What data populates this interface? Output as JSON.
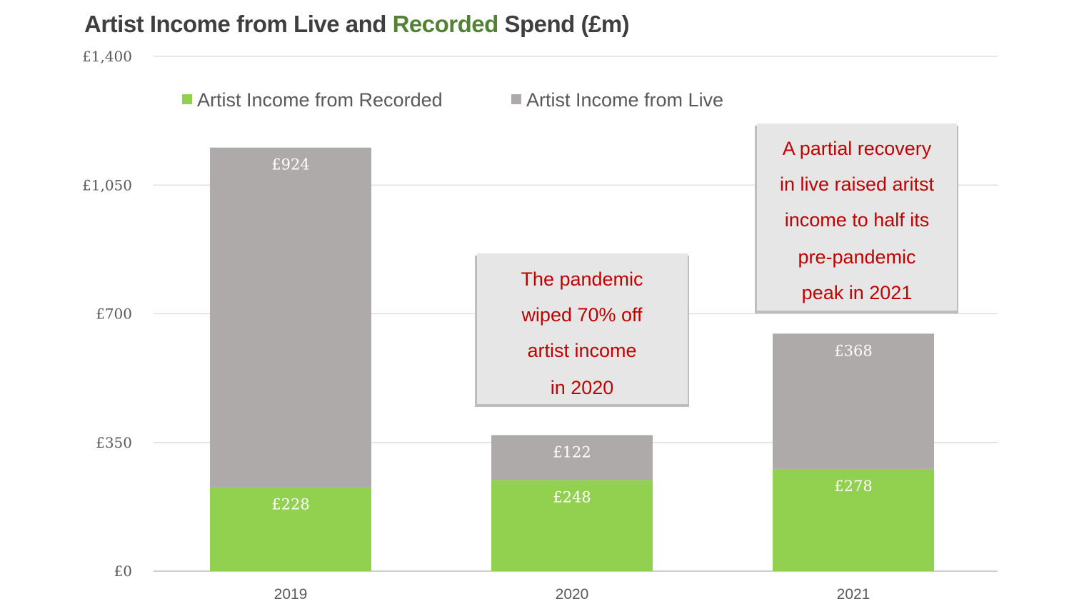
{
  "colors": {
    "recorded": "#92d050",
    "live": "#aeaaaa",
    "title": "#3f3f3f",
    "title_accent": "#538135",
    "grid": "#d9d9d9",
    "axis": "#bfbfbf",
    "annotation_text": "#c00000",
    "annotation_bg": "#e7e6e6"
  },
  "title": {
    "prefix": "Artist Income from Live and ",
    "accent": "Recorded",
    "suffix": " Spend (£m)"
  },
  "legend": {
    "recorded": "Artist Income from Recorded",
    "live": "Artist Income from Live"
  },
  "annotations": [
    {
      "lines": [
        "The pandemic",
        "wiped 70% off",
        "artist income",
        "in 2020"
      ]
    },
    {
      "lines": [
        "A partial recovery",
        "in live raised  aritst",
        "income to half its",
        "pre-pandemic",
        "peak in 2021"
      ]
    }
  ],
  "chart_data": {
    "type": "bar",
    "stacked": true,
    "categories": [
      "2019",
      "2020",
      "2021"
    ],
    "series": [
      {
        "name": "Artist Income from Recorded",
        "values": [
          228,
          248,
          278
        ],
        "labels": [
          "£228",
          "£248",
          "£278"
        ]
      },
      {
        "name": "Artist Income from Live",
        "values": [
          924,
          122,
          368
        ],
        "labels": [
          "£924",
          "£122",
          "£368"
        ]
      }
    ],
    "title": "Artist Income from Live and Recorded Spend (£m)",
    "ylim": [
      0,
      1400
    ],
    "yticks": [
      0,
      350,
      700,
      1050,
      1400
    ],
    "ytick_labels": [
      "£0",
      "£350",
      "£700",
      "£1,050",
      "£1,400"
    ],
    "grid": true,
    "legend_position": "top"
  }
}
